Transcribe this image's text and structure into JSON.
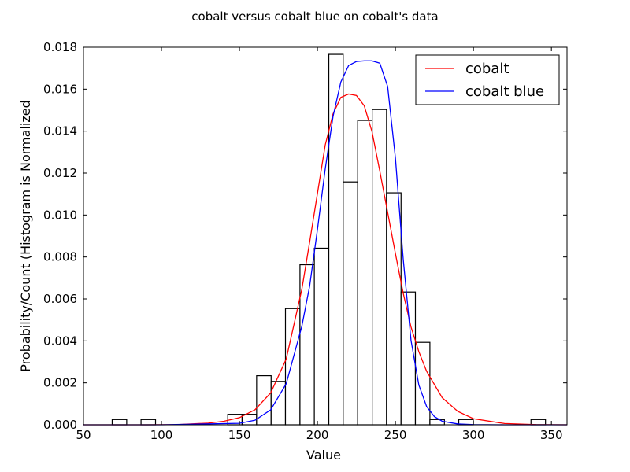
{
  "chart_data": {
    "type": "bar",
    "title": "cobalt versus cobalt blue on cobalt's data",
    "xlabel": "Value",
    "ylabel": "Probability/Count (Histogram is Normalized",
    "xlim": [
      50,
      360
    ],
    "ylim": [
      0,
      0.018
    ],
    "xticks": [
      "50",
      "100",
      "150",
      "200",
      "250",
      "300",
      "350"
    ],
    "xtick_values": [
      50,
      100,
      150,
      200,
      250,
      300,
      350
    ],
    "yticks": [
      "0.000",
      "0.002",
      "0.004",
      "0.006",
      "0.008",
      "0.010",
      "0.012",
      "0.014",
      "0.016",
      "0.018"
    ],
    "ytick_values": [
      0,
      0.002,
      0.004,
      0.006,
      0.008,
      0.01,
      0.012,
      0.014,
      0.016,
      0.018
    ],
    "grid": false,
    "legend_position": "top-right",
    "histogram": {
      "bin_edges": [
        68.4,
        77.7,
        86.9,
        96.2,
        105.4,
        114.7,
        124.0,
        133.2,
        142.5,
        151.7,
        161.0,
        170.3,
        179.5,
        188.8,
        198.0,
        207.3,
        216.5,
        225.8,
        235.1,
        244.3,
        253.6,
        262.8,
        272.1,
        281.4,
        290.6,
        299.9,
        309.1,
        318.4,
        327.6,
        336.9,
        346.2
      ],
      "values": [
        0.00025,
        0,
        0.00025,
        0,
        0,
        0,
        0,
        0,
        0.0005,
        0.0005,
        0.00234,
        0.00207,
        0.00554,
        0.00763,
        0.00842,
        0.01766,
        0.01158,
        0.01451,
        0.01503,
        0.01106,
        0.00633,
        0.00393,
        0.00025,
        0,
        0.00025,
        0,
        0,
        0,
        0,
        0.00025
      ],
      "color": "#ffffff",
      "edgecolor": "#000000"
    },
    "series": [
      {
        "name": "cobalt",
        "color": "#ff0000",
        "x": [
          50,
          70,
          90,
          110,
          130,
          140,
          150,
          160,
          170,
          180,
          190,
          195,
          200,
          205,
          210,
          215,
          220,
          225,
          230,
          235,
          240,
          245,
          250,
          255,
          260,
          265,
          270,
          280,
          290,
          300,
          320,
          340,
          360
        ],
        "y": [
          0,
          0,
          0,
          1e-05,
          8e-05,
          0.00017,
          0.00034,
          0.00072,
          0.00152,
          0.00314,
          0.00646,
          0.00871,
          0.01103,
          0.01334,
          0.01482,
          0.01561,
          0.01577,
          0.0157,
          0.01521,
          0.01397,
          0.01209,
          0.01013,
          0.00816,
          0.00627,
          0.00466,
          0.00349,
          0.00255,
          0.00129,
          0.00064,
          0.00029,
          6e-05,
          1e-05,
          0
        ]
      },
      {
        "name": "cobalt blue",
        "color": "#0000ff",
        "x": [
          50,
          100,
          150,
          160,
          170,
          180,
          190,
          195,
          200,
          205,
          210,
          215,
          220,
          225,
          230,
          235,
          240,
          245,
          250,
          255,
          260,
          265,
          270,
          275,
          280,
          290,
          300,
          320,
          360
        ],
        "y": [
          0,
          0,
          7e-05,
          0.00022,
          0.00071,
          0.00196,
          0.0047,
          0.00661,
          0.00931,
          0.0122,
          0.0147,
          0.01634,
          0.01713,
          0.01732,
          0.01735,
          0.01735,
          0.01724,
          0.01613,
          0.01271,
          0.00789,
          0.00402,
          0.0019,
          0.00087,
          0.00039,
          0.00017,
          4e-05,
          1e-05,
          0,
          0
        ]
      }
    ]
  }
}
